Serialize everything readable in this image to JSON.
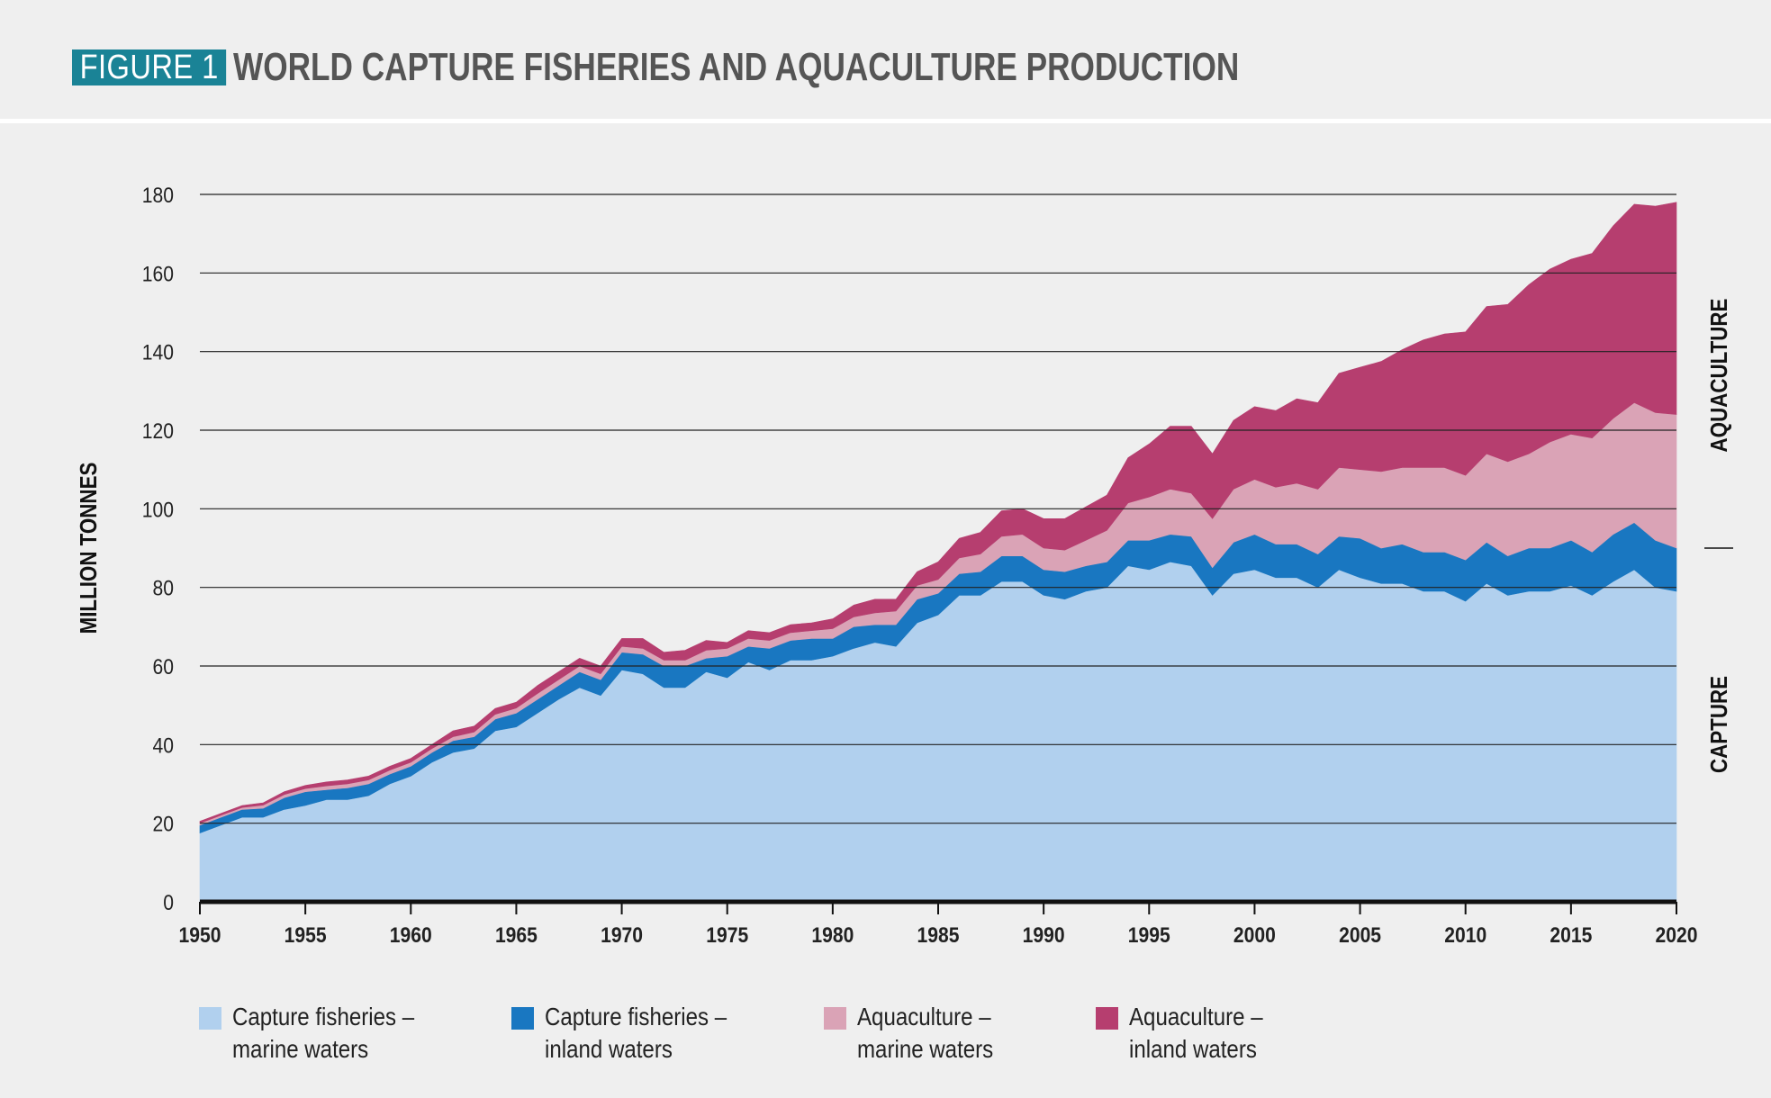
{
  "header": {
    "badge": "FIGURE 1",
    "title": "WORLD CAPTURE FISHERIES AND AQUACULTURE PRODUCTION"
  },
  "chart_data": {
    "type": "area",
    "stacked": true,
    "title": "WORLD CAPTURE FISHERIES AND AQUACULTURE PRODUCTION",
    "xlabel": "",
    "ylabel": "MILLION TONNES",
    "xlim": [
      1950,
      2020
    ],
    "ylim": [
      0,
      180
    ],
    "x_ticks": [
      1950,
      1955,
      1960,
      1965,
      1970,
      1975,
      1980,
      1985,
      1990,
      1995,
      2000,
      2005,
      2010,
      2015,
      2020
    ],
    "y_ticks": [
      0,
      20,
      40,
      60,
      80,
      100,
      120,
      140,
      160,
      180
    ],
    "grid": "horizontal",
    "legend": "bottom",
    "right_labels": [
      "AQUACULTURE",
      "CAPTURE"
    ],
    "x": [
      1950,
      1951,
      1952,
      1953,
      1954,
      1955,
      1956,
      1957,
      1958,
      1959,
      1960,
      1961,
      1962,
      1963,
      1964,
      1965,
      1966,
      1967,
      1968,
      1969,
      1970,
      1971,
      1972,
      1973,
      1974,
      1975,
      1976,
      1977,
      1978,
      1979,
      1980,
      1981,
      1982,
      1983,
      1984,
      1985,
      1986,
      1987,
      1988,
      1989,
      1990,
      1991,
      1992,
      1993,
      1994,
      1995,
      1996,
      1997,
      1998,
      1999,
      2000,
      2001,
      2002,
      2003,
      2004,
      2005,
      2006,
      2007,
      2008,
      2009,
      2010,
      2011,
      2012,
      2013,
      2014,
      2015,
      2016,
      2017,
      2018,
      2019,
      2020
    ],
    "series": [
      {
        "name": "Capture fisheries – marine waters",
        "color": "#b1d0ee",
        "values": [
          17.5,
          19.5,
          21.5,
          21.5,
          23.5,
          24.5,
          26,
          26,
          27,
          30,
          32,
          35.5,
          38,
          39,
          43.5,
          44.5,
          48,
          51.5,
          54.5,
          52.5,
          59,
          58,
          54.5,
          54.5,
          58.5,
          57,
          61,
          59,
          61.5,
          61.5,
          62.5,
          64.5,
          66,
          65,
          71,
          73,
          78,
          78,
          81.5,
          81.5,
          78,
          77,
          79,
          80,
          85.5,
          84.5,
          86.5,
          85.5,
          78,
          83.5,
          84.5,
          82.5,
          82.5,
          80,
          84.5,
          82.5,
          81,
          81,
          79,
          79,
          76.5,
          81,
          78,
          79,
          79,
          80.5,
          78,
          81.5,
          84.5,
          80,
          79
        ]
      },
      {
        "name": "Capture fisheries – inland waters",
        "color": "#1977c1",
        "values": [
          2,
          2,
          2,
          2.3,
          3,
          3.5,
          2.5,
          3,
          3,
          2.5,
          2.5,
          2.5,
          3,
          3,
          3,
          3.5,
          3.5,
          3.5,
          4,
          4,
          4.5,
          5,
          5.5,
          5.5,
          3.5,
          5.5,
          4,
          5.5,
          5,
          5.5,
          4.5,
          5.5,
          4.5,
          5.5,
          6,
          5.5,
          5.5,
          6,
          6.5,
          6.5,
          6.5,
          7,
          6.5,
          6.5,
          6.5,
          7.5,
          7,
          7.5,
          7,
          8,
          9,
          8.5,
          8.5,
          8.5,
          8.5,
          10,
          9,
          10,
          10,
          10,
          10.5,
          10.5,
          10,
          11,
          11,
          11.5,
          11,
          12,
          12,
          12,
          11
        ]
      },
      {
        "name": "Aquaculture – marine waters",
        "color": "#daa3b6",
        "values": [
          0.5,
          0.5,
          0.5,
          0.8,
          0.8,
          0.8,
          1,
          1,
          1,
          1,
          1,
          1,
          1,
          1.2,
          1.2,
          1.3,
          1.5,
          1.5,
          1.5,
          1.5,
          1.5,
          1.5,
          1.5,
          1.5,
          2,
          2,
          2,
          2,
          2,
          2,
          2.5,
          2.5,
          3,
          3.5,
          3.5,
          3.5,
          4,
          4.5,
          5,
          5.5,
          5.5,
          5.5,
          6.5,
          8,
          9.5,
          11,
          11.5,
          11,
          12.5,
          13.5,
          14,
          14.5,
          15.5,
          16.5,
          17.5,
          17.5,
          19.5,
          19.5,
          21.5,
          21.5,
          21.5,
          22.5,
          24,
          24,
          27,
          27,
          29,
          29.5,
          30.5,
          32.5,
          34
        ]
      },
      {
        "name": "Aquaculture – inland waters",
        "color": "#b63e6f",
        "values": [
          0.5,
          0.5,
          0.5,
          0.6,
          0.7,
          0.8,
          1,
          1,
          1,
          1,
          1,
          1,
          1.5,
          1.5,
          1.5,
          1.5,
          2,
          2,
          2,
          2,
          2,
          2.5,
          2,
          2.5,
          2.5,
          1.5,
          2,
          2,
          2,
          2,
          2.5,
          3,
          3.5,
          3,
          3.5,
          4.5,
          5,
          5.5,
          6.5,
          6.5,
          7.5,
          8,
          8.5,
          9,
          11.5,
          13.5,
          16,
          17,
          16.5,
          17.5,
          18.5,
          19.5,
          21.5,
          22,
          24,
          26,
          28,
          30,
          32.5,
          34,
          36.5,
          37.5,
          40,
          43,
          44,
          44.5,
          47,
          49,
          50.5,
          52.5,
          54
        ]
      }
    ]
  },
  "legend": {
    "items": [
      {
        "label": "Capture fisheries –\nmarine waters",
        "color": "#b1d0ee"
      },
      {
        "label": "Capture fisheries –\ninland waters",
        "color": "#1977c1"
      },
      {
        "label": "Aquaculture –\nmarine waters",
        "color": "#daa3b6"
      },
      {
        "label": "Aquaculture –\ninland waters",
        "color": "#b63e6f"
      }
    ]
  }
}
